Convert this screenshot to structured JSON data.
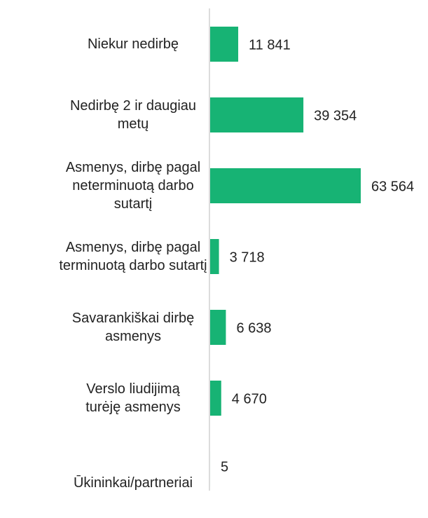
{
  "chart_data": {
    "type": "bar",
    "orientation": "horizontal",
    "categories": [
      "Niekur nedirbę",
      "Nedirbę 2 ir daugiau metų",
      "Asmenys, dirbę pagal neterminuotą darbo sutartį",
      "Asmenys, dirbę pagal terminuotą darbo sutartį",
      "Savarankiškai dirbę asmenys",
      "Verslo liudijimą turėję asmenys",
      "Ūkininkai/partneriai"
    ],
    "values": [
      11841,
      39354,
      63564,
      3718,
      6638,
      4670,
      5
    ],
    "value_labels": [
      "11 841",
      "39 354",
      "63 564",
      "3 718",
      "6 638",
      "4 670",
      "5"
    ],
    "color": "#17b374"
  }
}
